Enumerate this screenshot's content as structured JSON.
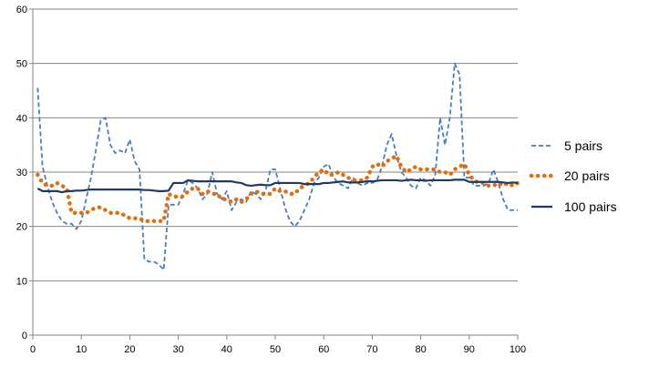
{
  "chart_data": {
    "type": "line",
    "title": "",
    "xlabel": "",
    "ylabel": "",
    "xlim": [
      0,
      100
    ],
    "ylim": [
      0,
      60
    ],
    "x_ticks": [
      "0",
      "10",
      "20",
      "30",
      "40",
      "50",
      "60",
      "70",
      "80",
      "90",
      "100"
    ],
    "y_ticks": [
      "0",
      "10",
      "20",
      "30",
      "40",
      "50",
      "60"
    ],
    "grid": "horizontal",
    "legend_position": "right",
    "series": [
      {
        "name": "5 pairs",
        "style": "dashed",
        "color": "#4A7EBB",
        "x": [
          1,
          2,
          3,
          4,
          5,
          6,
          7,
          8,
          9,
          10,
          11,
          12,
          13,
          14,
          15,
          16,
          17,
          18,
          19,
          20,
          21,
          22,
          23,
          24,
          25,
          26,
          27,
          28,
          29,
          30,
          31,
          32,
          33,
          34,
          35,
          36,
          37,
          38,
          39,
          40,
          41,
          42,
          43,
          44,
          45,
          46,
          47,
          48,
          49,
          50,
          51,
          52,
          53,
          54,
          55,
          56,
          57,
          58,
          59,
          60,
          61,
          62,
          63,
          64,
          65,
          66,
          67,
          68,
          69,
          70,
          71,
          72,
          73,
          74,
          75,
          76,
          77,
          78,
          79,
          80,
          81,
          82,
          83,
          84,
          85,
          86,
          87,
          88,
          89,
          90,
          91,
          92,
          93,
          94,
          95,
          96,
          97,
          98,
          99,
          100
        ],
        "values": [
          45.5,
          31,
          27.5,
          24.5,
          22.5,
          21,
          20.5,
          20.5,
          19.5,
          21,
          25,
          29,
          34,
          39.5,
          40,
          35,
          33.5,
          34,
          33.5,
          36,
          32,
          30.5,
          14,
          13.5,
          13.5,
          13,
          12,
          24,
          24,
          24,
          26,
          28.5,
          28,
          27,
          25,
          26,
          30,
          26,
          25,
          26.5,
          23,
          24.5,
          25,
          24.5,
          26.5,
          26,
          25,
          26.5,
          30.5,
          30.5,
          27,
          23.5,
          21,
          20,
          21,
          23,
          25,
          28,
          29,
          31,
          31.5,
          29,
          28,
          27.5,
          27,
          29,
          28,
          27.5,
          28,
          28,
          28.5,
          31,
          35,
          37,
          33,
          30,
          29,
          27.5,
          27,
          29,
          28.5,
          27.5,
          29.5,
          40,
          35,
          40,
          50,
          48,
          29,
          29,
          27.5,
          27.5,
          27.5,
          28,
          30.5,
          28,
          25,
          23,
          23,
          23
        ]
      },
      {
        "name": "20 pairs",
        "style": "dotted",
        "color": "#E46C0A",
        "x": [
          1,
          2,
          3,
          4,
          5,
          6,
          7,
          8,
          9,
          10,
          11,
          12,
          13,
          14,
          15,
          16,
          17,
          18,
          19,
          20,
          21,
          22,
          23,
          24,
          25,
          26,
          27,
          28,
          29,
          30,
          31,
          32,
          33,
          34,
          35,
          36,
          37,
          38,
          39,
          40,
          41,
          42,
          43,
          44,
          45,
          46,
          47,
          48,
          49,
          50,
          51,
          52,
          53,
          54,
          55,
          56,
          57,
          58,
          59,
          60,
          61,
          62,
          63,
          64,
          65,
          66,
          67,
          68,
          69,
          70,
          71,
          72,
          73,
          74,
          75,
          76,
          77,
          78,
          79,
          80,
          81,
          82,
          83,
          84,
          85,
          86,
          87,
          88,
          89,
          90,
          91,
          92,
          93,
          94,
          95,
          96,
          97,
          98,
          99,
          100
        ],
        "values": [
          29.5,
          28,
          27.5,
          27.5,
          28,
          27.5,
          27,
          22.5,
          22.5,
          22.5,
          22.5,
          23,
          23.5,
          23.5,
          23,
          22.5,
          22.5,
          22.5,
          22,
          21.5,
          21.5,
          21.5,
          21,
          21,
          21,
          21,
          21,
          26,
          25.5,
          25.5,
          25.5,
          26.5,
          27,
          27,
          26,
          26.5,
          26,
          26,
          25,
          25,
          24.5,
          25,
          24.5,
          25,
          26,
          26.5,
          26,
          26,
          26,
          27,
          26.5,
          26.5,
          26,
          26,
          27,
          27.5,
          28,
          29,
          30,
          30.5,
          29.5,
          29.5,
          30,
          29.5,
          29,
          28.5,
          28.5,
          28.5,
          29,
          31,
          31.5,
          31,
          32,
          32.5,
          33,
          31,
          30,
          30.5,
          31,
          30.5,
          30.5,
          30.5,
          30.5,
          30,
          30,
          29.5,
          30.5,
          31,
          31.5,
          29.5,
          28.5,
          28,
          28,
          27.5,
          27.5,
          28,
          27.5,
          28,
          27.5,
          28
        ]
      },
      {
        "name": "100 pairs",
        "style": "solid",
        "color": "#1F3864",
        "x": [
          1,
          2,
          3,
          4,
          5,
          6,
          7,
          8,
          9,
          10,
          11,
          12,
          13,
          14,
          15,
          16,
          17,
          18,
          19,
          20,
          21,
          22,
          23,
          24,
          25,
          26,
          27,
          28,
          29,
          30,
          31,
          32,
          33,
          34,
          35,
          36,
          37,
          38,
          39,
          40,
          41,
          42,
          43,
          44,
          45,
          46,
          47,
          48,
          49,
          50,
          51,
          52,
          53,
          54,
          55,
          56,
          57,
          58,
          59,
          60,
          61,
          62,
          63,
          64,
          65,
          66,
          67,
          68,
          69,
          70,
          71,
          72,
          73,
          74,
          75,
          76,
          77,
          78,
          79,
          80,
          81,
          82,
          83,
          84,
          85,
          86,
          87,
          88,
          89,
          90,
          91,
          92,
          93,
          94,
          95,
          96,
          97,
          98,
          99,
          100
        ],
        "values": [
          27,
          26.5,
          26.5,
          26.5,
          26.5,
          26.3,
          26.5,
          26.5,
          26.6,
          26.6,
          26.7,
          26.8,
          26.8,
          26.8,
          26.8,
          26.8,
          26.8,
          26.8,
          26.8,
          26.8,
          26.8,
          26.8,
          26.7,
          26.7,
          26.6,
          26.5,
          26.5,
          26.6,
          28,
          28,
          28,
          28.5,
          28.4,
          28.3,
          28.3,
          28.3,
          28.3,
          28.3,
          28.3,
          28.3,
          28.3,
          28.1,
          28,
          27.6,
          27.5,
          27.6,
          27.7,
          27.6,
          27.6,
          28,
          28,
          28,
          28,
          28,
          28,
          27.8,
          27.8,
          27.8,
          27.8,
          28,
          28,
          28.1,
          28.2,
          28.3,
          28.1,
          28.1,
          28.1,
          28.2,
          28.3,
          28.3,
          28.4,
          28.5,
          28.5,
          28.5,
          28.5,
          28.4,
          28.5,
          28.6,
          28.5,
          28.5,
          28.4,
          28.5,
          28.5,
          28.5,
          28.5,
          28.5,
          28.6,
          28.6,
          28.6,
          28.2,
          28.2,
          28.2,
          28.2,
          28.2,
          28.2,
          28.2,
          28.1,
          28,
          28.1,
          28
        ]
      }
    ]
  }
}
